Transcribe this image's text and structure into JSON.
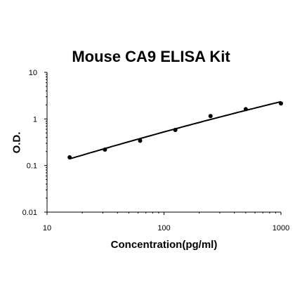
{
  "chart_data": {
    "type": "scatter",
    "title": "Mouse CA9 ELISA Kit",
    "xlabel": "Concentration(pg/ml)",
    "ylabel": "O.D.",
    "x_scale": "log",
    "y_scale": "log",
    "xlim": [
      10,
      1000
    ],
    "ylim": [
      0.01,
      10
    ],
    "x_ticks": [
      "10",
      "100",
      "1000"
    ],
    "y_ticks": [
      "10",
      "1",
      "0.1",
      "0.01"
    ],
    "grid": false,
    "legend": "none",
    "series": [
      {
        "points": [
          {
            "x": 15.6,
            "y": 0.15
          },
          {
            "x": 31.25,
            "y": 0.22
          },
          {
            "x": 62.5,
            "y": 0.34
          },
          {
            "x": 125,
            "y": 0.58
          },
          {
            "x": 250,
            "y": 1.15
          },
          {
            "x": 500,
            "y": 1.62
          },
          {
            "x": 1000,
            "y": 2.15
          }
        ],
        "fit_curve": true
      }
    ],
    "colors": {
      "points": "#000000",
      "curve": "#000000",
      "axes": "#000000"
    }
  }
}
